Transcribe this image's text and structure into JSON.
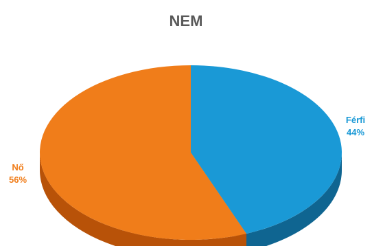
{
  "chart_data": {
    "type": "pie",
    "title": "NEM",
    "three_d": true,
    "start_angle": "12 o'clock, clockwise",
    "data_labels": "category name and percentage, outside slices",
    "slices": [
      {
        "label": "Férfi",
        "value": 44,
        "percent_label": "44%",
        "color": "#1a99d6",
        "side_color": "#0f6591"
      },
      {
        "label": "Nő",
        "value": 56,
        "percent_label": "56%",
        "color": "#f07d1a",
        "side_color": "#b85208"
      }
    ]
  }
}
